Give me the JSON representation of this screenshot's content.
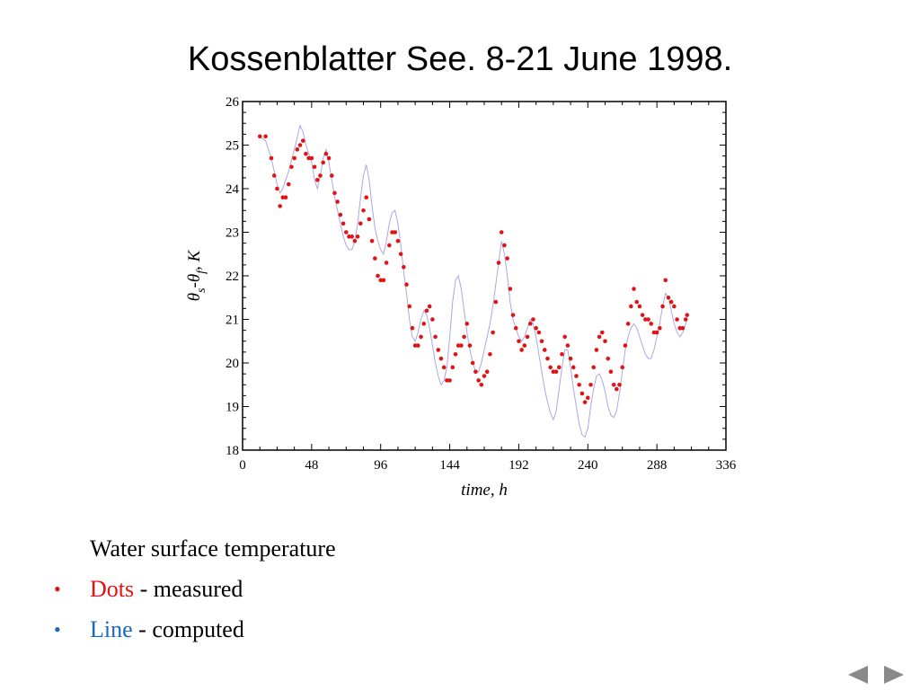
{
  "slide": {
    "title": "Kossenblatter See. 8-21 June 1998."
  },
  "notes": {
    "heading": "Water surface temperature",
    "items": [
      {
        "bullet": "•",
        "bullet_color": "#e01414",
        "label": "Dots",
        "label_color": "#e01414",
        "text": " - measured"
      },
      {
        "bullet": "•",
        "bullet_color": "#1a66c8",
        "label": "Line",
        "label_color": "#1a66c8",
        "text": " - computed"
      }
    ]
  },
  "nav": {
    "prev_icon": "triangle-left-icon",
    "next_icon": "triangle-right-icon",
    "color": "#8a8a8a"
  },
  "chart_data": {
    "type": "scatter",
    "title": "",
    "xlabel": "time, h",
    "ylabel_parts": [
      "θ",
      "s",
      "-θ",
      "f",
      ", K"
    ],
    "xlim": [
      0,
      336
    ],
    "ylim": [
      18,
      26
    ],
    "xticks": [
      0,
      48,
      96,
      144,
      192,
      240,
      288,
      336
    ],
    "yticks": [
      18,
      19,
      20,
      21,
      22,
      23,
      24,
      25,
      26
    ],
    "grid": false,
    "series": [
      {
        "kind": "dots",
        "color": "#e01414",
        "points": [
          [
            12,
            25.2
          ],
          [
            16,
            25.2
          ],
          [
            20,
            24.7
          ],
          [
            22,
            24.3
          ],
          [
            24,
            24.0
          ],
          [
            26,
            23.6
          ],
          [
            28,
            23.8
          ],
          [
            30,
            23.8
          ],
          [
            32,
            24.1
          ],
          [
            34,
            24.5
          ],
          [
            36,
            24.7
          ],
          [
            38,
            24.9
          ],
          [
            40,
            25.0
          ],
          [
            42,
            25.1
          ],
          [
            44,
            24.8
          ],
          [
            46,
            24.7
          ],
          [
            48,
            24.7
          ],
          [
            50,
            24.5
          ],
          [
            52,
            24.2
          ],
          [
            54,
            24.3
          ],
          [
            56,
            24.6
          ],
          [
            58,
            24.8
          ],
          [
            60,
            24.7
          ],
          [
            62,
            24.3
          ],
          [
            64,
            23.9
          ],
          [
            66,
            23.7
          ],
          [
            68,
            23.4
          ],
          [
            70,
            23.2
          ],
          [
            72,
            23.0
          ],
          [
            74,
            22.9
          ],
          [
            76,
            22.9
          ],
          [
            78,
            22.8
          ],
          [
            80,
            22.9
          ],
          [
            82,
            23.2
          ],
          [
            84,
            23.5
          ],
          [
            86,
            23.8
          ],
          [
            88,
            23.3
          ],
          [
            90,
            22.8
          ],
          [
            92,
            22.4
          ],
          [
            94,
            22.0
          ],
          [
            96,
            21.9
          ],
          [
            98,
            21.9
          ],
          [
            100,
            22.3
          ],
          [
            102,
            22.7
          ],
          [
            104,
            23.0
          ],
          [
            106,
            23.0
          ],
          [
            108,
            22.8
          ],
          [
            110,
            22.5
          ],
          [
            112,
            22.2
          ],
          [
            114,
            21.8
          ],
          [
            116,
            21.3
          ],
          [
            118,
            20.8
          ],
          [
            120,
            20.4
          ],
          [
            122,
            20.4
          ],
          [
            124,
            20.6
          ],
          [
            126,
            20.9
          ],
          [
            128,
            21.2
          ],
          [
            130,
            21.3
          ],
          [
            132,
            21.0
          ],
          [
            134,
            20.6
          ],
          [
            136,
            20.3
          ],
          [
            138,
            20.1
          ],
          [
            140,
            19.9
          ],
          [
            142,
            19.6
          ],
          [
            144,
            19.6
          ],
          [
            146,
            19.9
          ],
          [
            148,
            20.2
          ],
          [
            150,
            20.4
          ],
          [
            152,
            20.4
          ],
          [
            154,
            20.6
          ],
          [
            156,
            20.9
          ],
          [
            158,
            20.4
          ],
          [
            160,
            20.0
          ],
          [
            162,
            19.8
          ],
          [
            164,
            19.6
          ],
          [
            166,
            19.5
          ],
          [
            168,
            19.7
          ],
          [
            170,
            19.8
          ],
          [
            172,
            20.2
          ],
          [
            174,
            20.7
          ],
          [
            176,
            21.4
          ],
          [
            178,
            22.3
          ],
          [
            180,
            23.0
          ],
          [
            182,
            22.7
          ],
          [
            184,
            22.4
          ],
          [
            186,
            21.7
          ],
          [
            188,
            21.1
          ],
          [
            190,
            20.8
          ],
          [
            192,
            20.5
          ],
          [
            194,
            20.3
          ],
          [
            196,
            20.4
          ],
          [
            198,
            20.6
          ],
          [
            200,
            20.9
          ],
          [
            202,
            21.0
          ],
          [
            204,
            20.8
          ],
          [
            206,
            20.7
          ],
          [
            208,
            20.5
          ],
          [
            210,
            20.3
          ],
          [
            212,
            20.1
          ],
          [
            214,
            19.9
          ],
          [
            216,
            19.8
          ],
          [
            218,
            19.8
          ],
          [
            220,
            19.9
          ],
          [
            222,
            20.2
          ],
          [
            224,
            20.6
          ],
          [
            226,
            20.4
          ],
          [
            228,
            20.1
          ],
          [
            230,
            19.9
          ],
          [
            232,
            19.7
          ],
          [
            234,
            19.5
          ],
          [
            236,
            19.3
          ],
          [
            238,
            19.1
          ],
          [
            240,
            19.2
          ],
          [
            242,
            19.5
          ],
          [
            244,
            19.9
          ],
          [
            246,
            20.3
          ],
          [
            248,
            20.6
          ],
          [
            250,
            20.7
          ],
          [
            252,
            20.5
          ],
          [
            254,
            20.1
          ],
          [
            256,
            19.8
          ],
          [
            258,
            19.5
          ],
          [
            260,
            19.4
          ],
          [
            262,
            19.5
          ],
          [
            264,
            19.9
          ],
          [
            266,
            20.4
          ],
          [
            268,
            20.9
          ],
          [
            270,
            21.3
          ],
          [
            272,
            21.7
          ],
          [
            274,
            21.4
          ],
          [
            276,
            21.3
          ],
          [
            278,
            21.1
          ],
          [
            280,
            21.0
          ],
          [
            282,
            21.0
          ],
          [
            284,
            20.9
          ],
          [
            286,
            20.7
          ],
          [
            288,
            20.7
          ],
          [
            290,
            20.8
          ],
          [
            292,
            21.3
          ],
          [
            294,
            21.9
          ],
          [
            296,
            21.5
          ],
          [
            298,
            21.4
          ],
          [
            300,
            21.3
          ],
          [
            302,
            21.0
          ],
          [
            304,
            20.8
          ],
          [
            306,
            20.8
          ],
          [
            308,
            21.0
          ],
          [
            309,
            21.1
          ]
        ]
      },
      {
        "kind": "line",
        "color": "#a8a8e8",
        "points": [
          [
            12,
            25.2
          ],
          [
            16,
            25.1
          ],
          [
            20,
            24.7
          ],
          [
            24,
            24.1
          ],
          [
            26,
            23.9
          ],
          [
            28,
            24.0
          ],
          [
            32,
            24.4
          ],
          [
            36,
            24.9
          ],
          [
            40,
            25.45
          ],
          [
            42,
            25.3
          ],
          [
            44,
            25.0
          ],
          [
            48,
            24.6
          ],
          [
            50,
            24.2
          ],
          [
            52,
            24.0
          ],
          [
            54,
            24.3
          ],
          [
            56,
            24.7
          ],
          [
            58,
            24.9
          ],
          [
            60,
            24.6
          ],
          [
            62,
            24.2
          ],
          [
            64,
            23.8
          ],
          [
            66,
            23.5
          ],
          [
            68,
            23.2
          ],
          [
            70,
            22.9
          ],
          [
            72,
            22.7
          ],
          [
            74,
            22.6
          ],
          [
            76,
            22.6
          ],
          [
            78,
            22.8
          ],
          [
            80,
            23.2
          ],
          [
            82,
            23.8
          ],
          [
            84,
            24.3
          ],
          [
            86,
            24.55
          ],
          [
            88,
            24.2
          ],
          [
            90,
            23.6
          ],
          [
            92,
            23.1
          ],
          [
            94,
            22.8
          ],
          [
            96,
            22.6
          ],
          [
            98,
            22.5
          ],
          [
            100,
            22.8
          ],
          [
            102,
            23.2
          ],
          [
            104,
            23.45
          ],
          [
            106,
            23.5
          ],
          [
            108,
            23.2
          ],
          [
            110,
            22.7
          ],
          [
            112,
            22.1
          ],
          [
            114,
            21.6
          ],
          [
            116,
            21.0
          ],
          [
            118,
            20.6
          ],
          [
            120,
            20.5
          ],
          [
            122,
            20.7
          ],
          [
            124,
            21.0
          ],
          [
            126,
            21.2
          ],
          [
            128,
            21.1
          ],
          [
            130,
            20.8
          ],
          [
            132,
            20.4
          ],
          [
            134,
            20.0
          ],
          [
            136,
            19.7
          ],
          [
            138,
            19.5
          ],
          [
            140,
            19.6
          ],
          [
            142,
            19.9
          ],
          [
            144,
            20.6
          ],
          [
            146,
            21.4
          ],
          [
            148,
            21.9
          ],
          [
            150,
            22.0
          ],
          [
            152,
            21.7
          ],
          [
            154,
            21.2
          ],
          [
            156,
            20.7
          ],
          [
            158,
            20.3
          ],
          [
            160,
            20.0
          ],
          [
            162,
            19.8
          ],
          [
            164,
            19.8
          ],
          [
            166,
            20.0
          ],
          [
            168,
            20.3
          ],
          [
            170,
            20.6
          ],
          [
            172,
            20.9
          ],
          [
            174,
            21.3
          ],
          [
            176,
            21.8
          ],
          [
            178,
            22.3
          ],
          [
            180,
            22.8
          ],
          [
            182,
            22.5
          ],
          [
            184,
            22.0
          ],
          [
            186,
            21.4
          ],
          [
            188,
            21.0
          ],
          [
            190,
            20.8
          ],
          [
            192,
            20.6
          ],
          [
            194,
            20.5
          ],
          [
            196,
            20.6
          ],
          [
            198,
            20.8
          ],
          [
            200,
            21.0
          ],
          [
            202,
            20.9
          ],
          [
            204,
            20.6
          ],
          [
            206,
            20.2
          ],
          [
            208,
            19.8
          ],
          [
            210,
            19.4
          ],
          [
            212,
            19.1
          ],
          [
            214,
            18.85
          ],
          [
            216,
            18.7
          ],
          [
            218,
            18.9
          ],
          [
            220,
            19.4
          ],
          [
            222,
            19.9
          ],
          [
            224,
            20.3
          ],
          [
            226,
            20.3
          ],
          [
            228,
            19.9
          ],
          [
            230,
            19.4
          ],
          [
            232,
            19.0
          ],
          [
            234,
            18.6
          ],
          [
            236,
            18.35
          ],
          [
            238,
            18.3
          ],
          [
            240,
            18.5
          ],
          [
            242,
            19.0
          ],
          [
            244,
            19.4
          ],
          [
            246,
            19.7
          ],
          [
            248,
            19.75
          ],
          [
            250,
            19.6
          ],
          [
            252,
            19.35
          ],
          [
            254,
            19.0
          ],
          [
            256,
            18.8
          ],
          [
            258,
            18.75
          ],
          [
            260,
            18.9
          ],
          [
            262,
            19.3
          ],
          [
            264,
            19.8
          ],
          [
            266,
            20.3
          ],
          [
            268,
            20.6
          ],
          [
            270,
            20.8
          ],
          [
            272,
            20.9
          ],
          [
            274,
            20.8
          ],
          [
            276,
            20.6
          ],
          [
            278,
            20.4
          ],
          [
            280,
            20.2
          ],
          [
            282,
            20.1
          ],
          [
            284,
            20.1
          ],
          [
            286,
            20.3
          ],
          [
            288,
            20.6
          ],
          [
            290,
            20.9
          ],
          [
            292,
            21.3
          ],
          [
            294,
            21.6
          ],
          [
            296,
            21.5
          ],
          [
            298,
            21.2
          ],
          [
            300,
            20.9
          ],
          [
            302,
            20.7
          ],
          [
            304,
            20.6
          ],
          [
            306,
            20.7
          ],
          [
            308,
            20.9
          ],
          [
            309,
            21.0
          ]
        ]
      }
    ]
  }
}
